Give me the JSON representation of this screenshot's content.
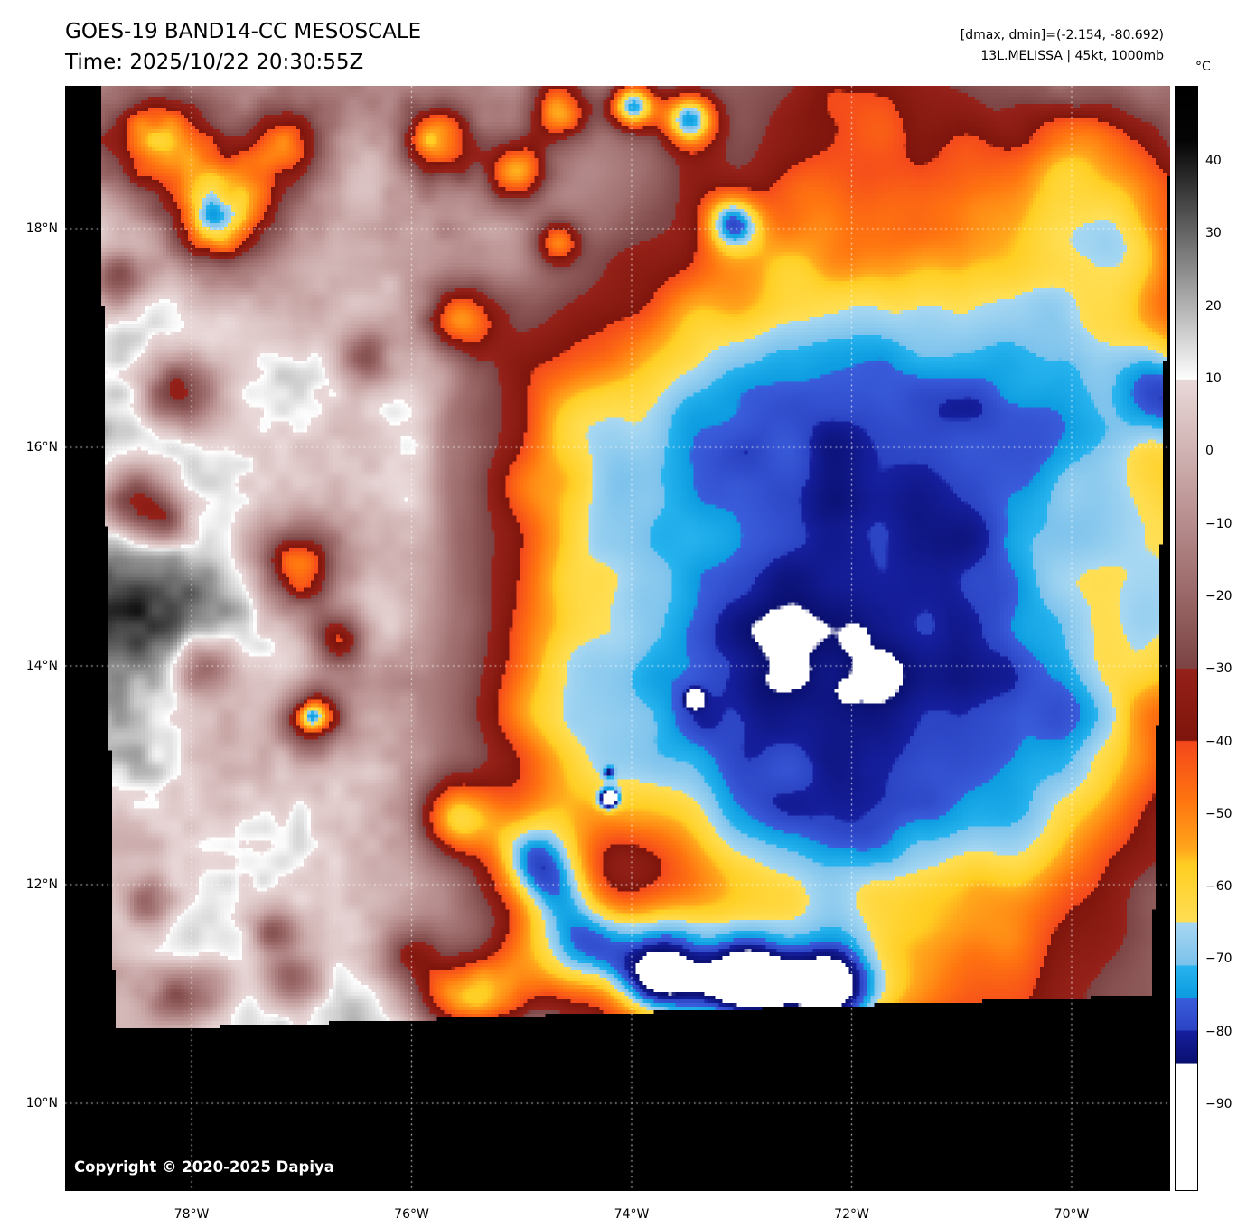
{
  "header": {
    "title": "GOES-19 BAND14-CC MESOSCALE",
    "timestamp": "Time: 2025/10/22 20:30:55Z",
    "data_range": "[dmax, dmin]=(-2.154, -80.692)",
    "storm_status": "13L.MELISSA | 45kt, 1000mb"
  },
  "colorbar": {
    "unit": "°C",
    "tick_labels": [
      "40",
      "30",
      "20",
      "10",
      "0",
      "−10",
      "−20",
      "−30",
      "−40",
      "−50",
      "−60",
      "−70",
      "−80",
      "−90"
    ],
    "tick_values": [
      40,
      30,
      20,
      10,
      0,
      -10,
      -20,
      -30,
      -40,
      -50,
      -60,
      -70,
      -80,
      -90
    ],
    "palette": [
      [
        50.3,
        "#000000"
      ],
      [
        43,
        "#050505"
      ],
      [
        10,
        "#ffffff"
      ],
      [
        9.9,
        "#ead9d9"
      ],
      [
        -8,
        "#bc9494"
      ],
      [
        -22,
        "#946060"
      ],
      [
        -29.9,
        "#7c4444"
      ],
      [
        -30,
        "#96221a"
      ],
      [
        -39.9,
        "#7e150c"
      ],
      [
        -40,
        "#f4491c"
      ],
      [
        -48,
        "#ff7410"
      ],
      [
        -55,
        "#ffa81c"
      ],
      [
        -57,
        "#ffce22"
      ],
      [
        -64.9,
        "#ffdf55"
      ],
      [
        -65,
        "#a8d8f2"
      ],
      [
        -70.9,
        "#7cc2ec"
      ],
      [
        -71,
        "#28b4ee"
      ],
      [
        -75.4,
        "#0c9ce0"
      ],
      [
        -75.5,
        "#3a5ddb"
      ],
      [
        -79.9,
        "#2b44c4"
      ],
      [
        -80,
        "#161f9e"
      ],
      [
        -84.4,
        "#0a1070"
      ],
      [
        -84.5,
        "#ffffff"
      ],
      [
        -101.9,
        "#ffffff"
      ]
    ]
  },
  "axes": {
    "lat_tick_labels": [
      "18°N",
      "16°N",
      "14°N",
      "12°N",
      "10°N"
    ],
    "lon_tick_labels": [
      "78°W",
      "76°W",
      "74°W",
      "72°W",
      "70°W"
    ]
  },
  "map": {
    "copyright": "Copyright © 2020-2025 Dapiya"
  }
}
